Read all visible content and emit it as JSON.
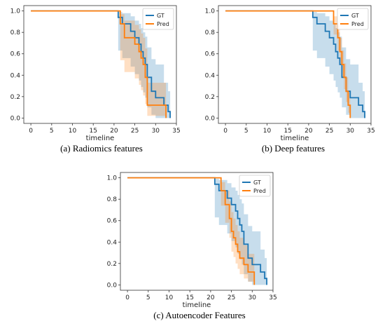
{
  "colors": {
    "gt": "#1f77b4",
    "pred": "#ff7f0e"
  },
  "chart_data": [
    {
      "type": "line",
      "caption": "(a)  Radiomics features",
      "xlabel": "timeline",
      "xlim": [
        -1.7,
        35
      ],
      "ylim": [
        -0.05,
        1.05
      ],
      "xticks": [
        0,
        5,
        10,
        15,
        20,
        25,
        30,
        35
      ],
      "yticks": [
        0.0,
        0.2,
        0.4,
        0.6,
        0.8,
        1.0
      ],
      "legend": "top-right",
      "series": [
        {
          "name": "GT",
          "color": "#1f77b4",
          "x": [
            0,
            21,
            22,
            24,
            25,
            26,
            26.5,
            27,
            27.5,
            28,
            29,
            30,
            32,
            33,
            33.5
          ],
          "y": [
            1.0,
            0.94,
            0.88,
            0.81,
            0.75,
            0.69,
            0.62,
            0.56,
            0.5,
            0.38,
            0.25,
            0.19,
            0.12,
            0.06,
            0.0
          ],
          "lower": [
            1.0,
            0.63,
            0.56,
            0.48,
            0.41,
            0.35,
            0.29,
            0.24,
            0.19,
            0.1,
            0.03,
            0.0,
            0.0,
            0.0,
            0.0
          ],
          "upper": [
            1.0,
            0.99,
            0.98,
            0.95,
            0.91,
            0.88,
            0.84,
            0.8,
            0.76,
            0.66,
            0.55,
            0.5,
            0.33,
            0.25,
            0.25
          ]
        },
        {
          "name": "Pred",
          "color": "#ff7f0e",
          "x": [
            0,
            21.5,
            22.5,
            25,
            26,
            26.5,
            27,
            27.5,
            28,
            29,
            32.5
          ],
          "y": [
            1.0,
            0.88,
            0.75,
            0.69,
            0.62,
            0.56,
            0.5,
            0.38,
            0.12,
            0.12,
            0.0
          ],
          "lower": [
            1.0,
            0.54,
            0.43,
            0.37,
            0.31,
            0.26,
            0.21,
            0.13,
            0.02,
            0.02,
            0.0
          ],
          "upper": [
            1.0,
            0.97,
            0.91,
            0.87,
            0.83,
            0.79,
            0.75,
            0.65,
            0.33,
            0.33,
            0.0
          ]
        }
      ]
    },
    {
      "type": "line",
      "caption": "(b)  Deep features",
      "xlabel": "timeline",
      "xlim": [
        -1.7,
        35
      ],
      "ylim": [
        -0.05,
        1.05
      ],
      "xticks": [
        0,
        5,
        10,
        15,
        20,
        25,
        30,
        35
      ],
      "yticks": [
        0.0,
        0.2,
        0.4,
        0.6,
        0.8,
        1.0
      ],
      "legend": "top-right",
      "series": [
        {
          "name": "GT",
          "color": "#1f77b4",
          "x": [
            0,
            21,
            22,
            24,
            25,
            26,
            26.5,
            27,
            27.5,
            28,
            29,
            30,
            32,
            33,
            33.5
          ],
          "y": [
            1.0,
            0.94,
            0.88,
            0.81,
            0.75,
            0.69,
            0.62,
            0.56,
            0.5,
            0.38,
            0.25,
            0.19,
            0.12,
            0.06,
            0.0
          ],
          "lower": [
            1.0,
            0.63,
            0.56,
            0.48,
            0.41,
            0.35,
            0.29,
            0.24,
            0.19,
            0.1,
            0.03,
            0.0,
            0.0,
            0.0,
            0.0
          ],
          "upper": [
            1.0,
            0.99,
            0.98,
            0.95,
            0.91,
            0.88,
            0.84,
            0.8,
            0.76,
            0.66,
            0.55,
            0.5,
            0.33,
            0.25,
            0.25
          ]
        },
        {
          "name": "Pred",
          "color": "#ff7f0e",
          "x": [
            0,
            26,
            27,
            27.5,
            28,
            28.5,
            29,
            29.5,
            30
          ],
          "y": [
            1.0,
            0.88,
            0.75,
            0.62,
            0.5,
            0.38,
            0.25,
            0.12,
            0.0
          ],
          "lower": [
            1.0,
            0.78,
            0.63,
            0.5,
            0.38,
            0.27,
            0.15,
            0.05,
            0.0
          ],
          "upper": [
            1.0,
            0.95,
            0.86,
            0.75,
            0.63,
            0.51,
            0.38,
            0.24,
            0.0
          ]
        }
      ]
    },
    {
      "type": "line",
      "caption": "(c)  Autoencoder Features",
      "xlabel": "timeline",
      "xlim": [
        -1.7,
        35
      ],
      "ylim": [
        -0.05,
        1.05
      ],
      "xticks": [
        0,
        5,
        10,
        15,
        20,
        25,
        30,
        35
      ],
      "yticks": [
        0.0,
        0.2,
        0.4,
        0.6,
        0.8,
        1.0
      ],
      "legend": "top-right",
      "series": [
        {
          "name": "GT",
          "color": "#1f77b4",
          "x": [
            0,
            21,
            22,
            24,
            25,
            26,
            26.5,
            27,
            27.5,
            28,
            29,
            30,
            32,
            33,
            33.5
          ],
          "y": [
            1.0,
            0.94,
            0.88,
            0.81,
            0.75,
            0.69,
            0.62,
            0.56,
            0.5,
            0.38,
            0.25,
            0.19,
            0.12,
            0.06,
            0.0
          ],
          "lower": [
            1.0,
            0.63,
            0.56,
            0.48,
            0.41,
            0.35,
            0.29,
            0.24,
            0.19,
            0.1,
            0.03,
            0.0,
            0.0,
            0.0,
            0.0
          ],
          "upper": [
            1.0,
            0.99,
            0.98,
            0.95,
            0.91,
            0.88,
            0.84,
            0.8,
            0.76,
            0.66,
            0.55,
            0.5,
            0.33,
            0.25,
            0.25
          ]
        },
        {
          "name": "Pred",
          "color": "#ff7f0e",
          "x": [
            0,
            22.5,
            23.5,
            24.5,
            25,
            25.5,
            26,
            26.5,
            27,
            28,
            29,
            30.5
          ],
          "y": [
            1.0,
            0.88,
            0.75,
            0.62,
            0.5,
            0.44,
            0.38,
            0.31,
            0.25,
            0.19,
            0.12,
            0.0
          ],
          "lower": [
            1.0,
            0.74,
            0.58,
            0.44,
            0.31,
            0.26,
            0.2,
            0.15,
            0.1,
            0.06,
            0.03,
            0.0
          ],
          "upper": [
            1.0,
            0.96,
            0.88,
            0.78,
            0.68,
            0.62,
            0.56,
            0.5,
            0.44,
            0.37,
            0.29,
            0.0
          ]
        }
      ]
    }
  ]
}
